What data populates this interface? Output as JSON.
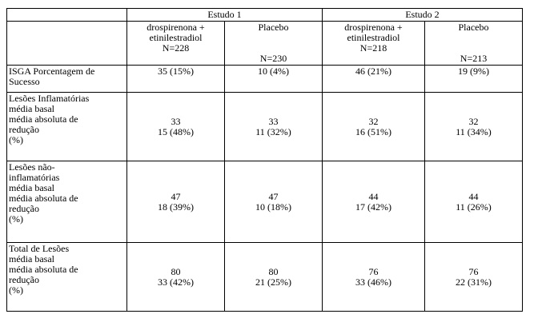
{
  "study_headers": [
    "Estudo 1",
    "Estudo 2"
  ],
  "columns": [
    {
      "line1": "drospirenona +",
      "line2": "etinilestradiol",
      "n": "N=228"
    },
    {
      "line1": "Placebo",
      "line2": "",
      "n": "N=230"
    },
    {
      "line1": "drospirenona +",
      "line2": "etinilestradiol",
      "n": "N=218"
    },
    {
      "line1": "Placebo",
      "line2": "",
      "n": "N=213"
    }
  ],
  "rows": [
    {
      "label": [
        "ISGA Porcentagem de",
        "Sucesso"
      ],
      "cells": [
        [
          "35 (15%)"
        ],
        [
          "10 (4%)"
        ],
        [
          "46 (21%)"
        ],
        [
          "19 (9%)"
        ]
      ]
    },
    {
      "label": [
        "Lesões Inflamatórias",
        "média basal",
        "média  absoluta  de",
        "redução",
        "(%)"
      ],
      "cells": [
        [
          "33",
          "15 (48%)"
        ],
        [
          "33",
          "11 (32%)"
        ],
        [
          "32",
          "16 (51%)"
        ],
        [
          "32",
          "11 (34%)"
        ]
      ]
    },
    {
      "label": [
        "Lesões não-",
        "inflamatórias",
        "média basal",
        "média  absoluta  de",
        "redução",
        "(%)"
      ],
      "cells": [
        [
          "47",
          "18 (39%)"
        ],
        [
          "47",
          "10 (18%)"
        ],
        [
          "44",
          "17 (42%)"
        ],
        [
          "44",
          "11 (26%)"
        ]
      ]
    },
    {
      "label": [
        "Total de Lesões",
        "média basal",
        "média  absoluta  de",
        "redução",
        "(%)"
      ],
      "cells": [
        [
          "80",
          "33 (42%)"
        ],
        [
          "80",
          "21 (25%)"
        ],
        [
          "76",
          "33 (46%)"
        ],
        [
          "76",
          "22 (31%)"
        ]
      ]
    }
  ]
}
